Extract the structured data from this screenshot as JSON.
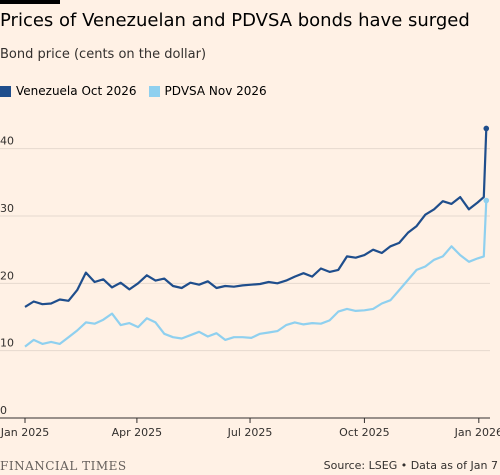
{
  "title": "Prices of Venezuelan and PDVSA bonds have surged",
  "subtitle": "Bond price (cents on the dollar)",
  "footer": {
    "brand": "FINANCIAL TIMES",
    "source": "Source: LSEG • Data as of Jan 7"
  },
  "chart_data": {
    "type": "line",
    "title": "Prices of Venezuelan and PDVSA bonds have surged",
    "ylabel": "Bond price (cents on the dollar)",
    "xlabel": "",
    "ylim": [
      0,
      45
    ],
    "yticks": [
      0,
      10,
      20,
      30,
      40
    ],
    "xlim": [
      "2025-01-01",
      "2026-01-10"
    ],
    "xticks": [
      {
        "date": "2025-01-01",
        "label": "Jan 2025"
      },
      {
        "date": "2025-04-01",
        "label": "Apr 2025"
      },
      {
        "date": "2025-07-01",
        "label": "Jul 2025"
      },
      {
        "date": "2025-10-01",
        "label": "Oct 2025"
      },
      {
        "date": "2026-01-01",
        "label": "Jan 2026"
      }
    ],
    "grid": true,
    "legend_position": "top-left",
    "series": [
      {
        "name": "Venezuela Oct 2026",
        "color": "#1f4e8c",
        "points": [
          [
            "2025-01-01",
            16.5
          ],
          [
            "2025-01-08",
            17.3
          ],
          [
            "2025-01-15",
            16.9
          ],
          [
            "2025-01-22",
            17.0
          ],
          [
            "2025-01-29",
            17.6
          ],
          [
            "2025-02-05",
            17.4
          ],
          [
            "2025-02-12",
            19.0
          ],
          [
            "2025-02-19",
            21.6
          ],
          [
            "2025-02-26",
            20.2
          ],
          [
            "2025-03-05",
            20.6
          ],
          [
            "2025-03-12",
            19.4
          ],
          [
            "2025-03-19",
            20.1
          ],
          [
            "2025-03-26",
            19.1
          ],
          [
            "2025-04-02",
            20.0
          ],
          [
            "2025-04-09",
            21.2
          ],
          [
            "2025-04-16",
            20.4
          ],
          [
            "2025-04-23",
            20.7
          ],
          [
            "2025-04-30",
            19.6
          ],
          [
            "2025-05-07",
            19.3
          ],
          [
            "2025-05-14",
            20.1
          ],
          [
            "2025-05-21",
            19.8
          ],
          [
            "2025-05-28",
            20.3
          ],
          [
            "2025-06-04",
            19.3
          ],
          [
            "2025-06-11",
            19.6
          ],
          [
            "2025-06-18",
            19.5
          ],
          [
            "2025-06-25",
            19.7
          ],
          [
            "2025-07-02",
            19.8
          ],
          [
            "2025-07-09",
            19.9
          ],
          [
            "2025-07-16",
            20.2
          ],
          [
            "2025-07-23",
            20.0
          ],
          [
            "2025-07-30",
            20.4
          ],
          [
            "2025-08-06",
            21.0
          ],
          [
            "2025-08-13",
            21.5
          ],
          [
            "2025-08-20",
            21.0
          ],
          [
            "2025-08-27",
            22.2
          ],
          [
            "2025-09-03",
            21.7
          ],
          [
            "2025-09-10",
            22.0
          ],
          [
            "2025-09-17",
            24.0
          ],
          [
            "2025-09-24",
            23.8
          ],
          [
            "2025-10-01",
            24.2
          ],
          [
            "2025-10-08",
            25.0
          ],
          [
            "2025-10-15",
            24.5
          ],
          [
            "2025-10-22",
            25.5
          ],
          [
            "2025-10-29",
            26.0
          ],
          [
            "2025-11-05",
            27.5
          ],
          [
            "2025-11-12",
            28.5
          ],
          [
            "2025-11-19",
            30.2
          ],
          [
            "2025-11-26",
            31.0
          ],
          [
            "2025-12-03",
            32.2
          ],
          [
            "2025-12-10",
            31.8
          ],
          [
            "2025-12-17",
            32.8
          ],
          [
            "2025-12-24",
            31.0
          ],
          [
            "2025-12-31",
            32.0
          ],
          [
            "2026-01-05",
            32.8
          ],
          [
            "2026-01-07",
            43.0
          ]
        ]
      },
      {
        "name": "PDVSA Nov 2026",
        "color": "#8fd0ef",
        "points": [
          [
            "2025-01-01",
            10.6
          ],
          [
            "2025-01-08",
            11.6
          ],
          [
            "2025-01-15",
            11.0
          ],
          [
            "2025-01-22",
            11.3
          ],
          [
            "2025-01-29",
            11.0
          ],
          [
            "2025-02-05",
            12.0
          ],
          [
            "2025-02-12",
            13.0
          ],
          [
            "2025-02-19",
            14.2
          ],
          [
            "2025-02-26",
            14.0
          ],
          [
            "2025-03-05",
            14.6
          ],
          [
            "2025-03-12",
            15.5
          ],
          [
            "2025-03-19",
            13.8
          ],
          [
            "2025-03-26",
            14.1
          ],
          [
            "2025-04-02",
            13.5
          ],
          [
            "2025-04-09",
            14.8
          ],
          [
            "2025-04-16",
            14.2
          ],
          [
            "2025-04-23",
            12.5
          ],
          [
            "2025-04-30",
            12.0
          ],
          [
            "2025-05-07",
            11.8
          ],
          [
            "2025-05-14",
            12.3
          ],
          [
            "2025-05-21",
            12.8
          ],
          [
            "2025-05-28",
            12.1
          ],
          [
            "2025-06-04",
            12.6
          ],
          [
            "2025-06-11",
            11.6
          ],
          [
            "2025-06-18",
            12.0
          ],
          [
            "2025-06-25",
            12.0
          ],
          [
            "2025-07-02",
            11.9
          ],
          [
            "2025-07-09",
            12.5
          ],
          [
            "2025-07-16",
            12.7
          ],
          [
            "2025-07-23",
            12.9
          ],
          [
            "2025-07-30",
            13.8
          ],
          [
            "2025-08-06",
            14.2
          ],
          [
            "2025-08-13",
            13.9
          ],
          [
            "2025-08-20",
            14.1
          ],
          [
            "2025-08-27",
            14.0
          ],
          [
            "2025-09-03",
            14.5
          ],
          [
            "2025-09-10",
            15.8
          ],
          [
            "2025-09-17",
            16.2
          ],
          [
            "2025-09-24",
            15.9
          ],
          [
            "2025-10-01",
            16.0
          ],
          [
            "2025-10-08",
            16.2
          ],
          [
            "2025-10-15",
            17.0
          ],
          [
            "2025-10-22",
            17.5
          ],
          [
            "2025-10-29",
            19.0
          ],
          [
            "2025-11-05",
            20.5
          ],
          [
            "2025-11-12",
            22.0
          ],
          [
            "2025-11-19",
            22.5
          ],
          [
            "2025-11-26",
            23.5
          ],
          [
            "2025-12-03",
            24.0
          ],
          [
            "2025-12-10",
            25.5
          ],
          [
            "2025-12-17",
            24.2
          ],
          [
            "2025-12-24",
            23.2
          ],
          [
            "2025-12-31",
            23.7
          ],
          [
            "2026-01-05",
            24.0
          ],
          [
            "2026-01-07",
            32.3
          ]
        ]
      }
    ]
  }
}
